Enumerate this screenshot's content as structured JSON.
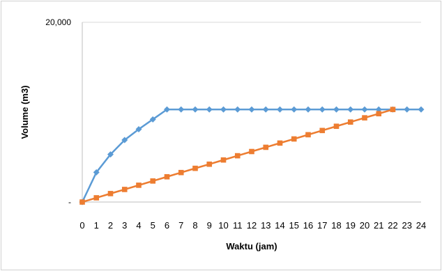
{
  "chart_data": {
    "type": "line",
    "xlabel": "Waktu (jam)",
    "ylabel": "Volume (m3)",
    "ylim": [
      0,
      20000
    ],
    "yticks": [
      {
        "value": 0,
        "label": "-"
      },
      {
        "value": 20000,
        "label": "20,000"
      }
    ],
    "grid": true,
    "x": [
      0,
      1,
      2,
      3,
      4,
      5,
      6,
      7,
      8,
      9,
      10,
      11,
      12,
      13,
      14,
      15,
      16,
      17,
      18,
      19,
      20,
      21,
      22,
      23,
      24
    ],
    "series": [
      {
        "color": "#5b9bd5",
        "marker": "diamond",
        "x": [
          0,
          1,
          2,
          3,
          4,
          5,
          6,
          7,
          8,
          9,
          10,
          11,
          12,
          13,
          14,
          15,
          16,
          17,
          18,
          19,
          20,
          21,
          22,
          23,
          24
        ],
        "values": [
          0,
          3300,
          5300,
          6900,
          8100,
          9200,
          10300,
          10300,
          10300,
          10300,
          10300,
          10300,
          10300,
          10300,
          10300,
          10300,
          10300,
          10300,
          10300,
          10300,
          10300,
          10300,
          10300,
          10300,
          10300
        ]
      },
      {
        "color": "#ed7d31",
        "marker": "square",
        "x": [
          0,
          1,
          2,
          3,
          4,
          5,
          6,
          7,
          8,
          9,
          10,
          11,
          12,
          13,
          14,
          15,
          16,
          17,
          18,
          19,
          20,
          21,
          22
        ],
        "values": [
          0,
          470,
          940,
          1400,
          1870,
          2340,
          2810,
          3280,
          3750,
          4210,
          4680,
          5150,
          5620,
          6090,
          6560,
          7020,
          7490,
          7960,
          8430,
          8900,
          9370,
          9830,
          10300
        ]
      }
    ]
  }
}
